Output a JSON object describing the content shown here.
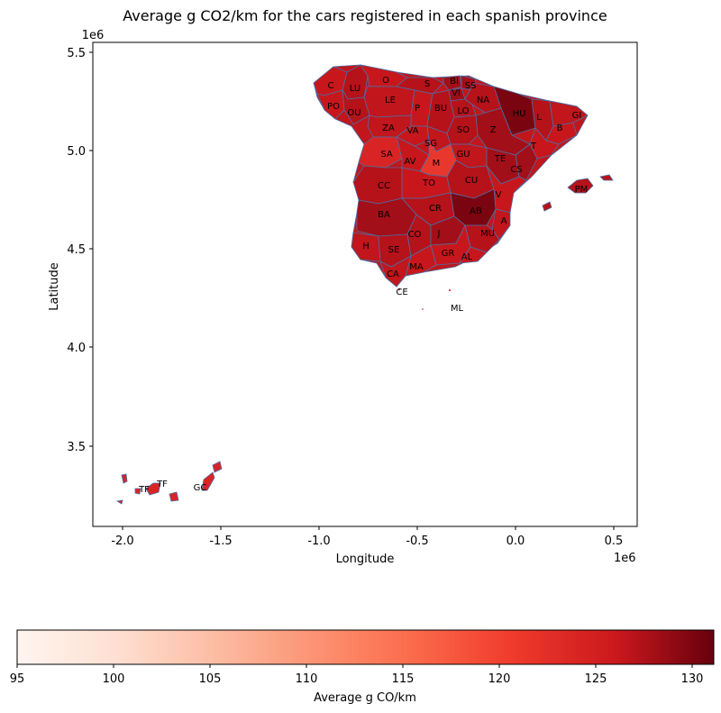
{
  "title": "Average g CO2/km for the cars registered in each spanish province",
  "axes": {
    "xlabel": "Longitude",
    "ylabel": "Latitude",
    "x_offset": "1e6",
    "y_offset": "1e6",
    "x_ticks": [
      "-2.0",
      "-1.5",
      "-1.0",
      "-0.5",
      "0.0",
      "0.5"
    ],
    "y_ticks": [
      "3.5",
      "4.0",
      "4.5",
      "5.0",
      "5.5"
    ]
  },
  "colorbar": {
    "label": "Average g CO/km",
    "min": 95,
    "max": 131,
    "ticks": [
      "95",
      "100",
      "105",
      "110",
      "115",
      "120",
      "125",
      "130"
    ],
    "colormap": "Reds",
    "color_stops": [
      "#fff5f0",
      "#fcbba1",
      "#fc9272",
      "#fb6a4a",
      "#ef3b2c",
      "#cb181d",
      "#a50f15",
      "#67000d"
    ]
  },
  "provinces": [
    {
      "code": "C"
    },
    {
      "code": "LU"
    },
    {
      "code": "O"
    },
    {
      "code": "S"
    },
    {
      "code": "BI"
    },
    {
      "code": "SS"
    },
    {
      "code": "VI"
    },
    {
      "code": "NA"
    },
    {
      "code": "PO"
    },
    {
      "code": "OU"
    },
    {
      "code": "LE"
    },
    {
      "code": "P"
    },
    {
      "code": "BU"
    },
    {
      "code": "LO"
    },
    {
      "code": "HU"
    },
    {
      "code": "L"
    },
    {
      "code": "GI"
    },
    {
      "code": "B"
    },
    {
      "code": "ZA"
    },
    {
      "code": "VA"
    },
    {
      "code": "SO"
    },
    {
      "code": "Z"
    },
    {
      "code": "T"
    },
    {
      "code": "SG"
    },
    {
      "code": "SA"
    },
    {
      "code": "AV"
    },
    {
      "code": "M"
    },
    {
      "code": "GU"
    },
    {
      "code": "TE"
    },
    {
      "code": "CS"
    },
    {
      "code": "CC"
    },
    {
      "code": "TO"
    },
    {
      "code": "CU"
    },
    {
      "code": "V"
    },
    {
      "code": "PM"
    },
    {
      "code": "BA"
    },
    {
      "code": "CR"
    },
    {
      "code": "AB"
    },
    {
      "code": "A"
    },
    {
      "code": "MU"
    },
    {
      "code": "CO"
    },
    {
      "code": "J"
    },
    {
      "code": "H"
    },
    {
      "code": "SE"
    },
    {
      "code": "GR"
    },
    {
      "code": "AL"
    },
    {
      "code": "MA"
    },
    {
      "code": "CA"
    },
    {
      "code": "CE"
    },
    {
      "code": "ML"
    },
    {
      "code": "TF"
    },
    {
      "code": "GC"
    }
  ]
}
